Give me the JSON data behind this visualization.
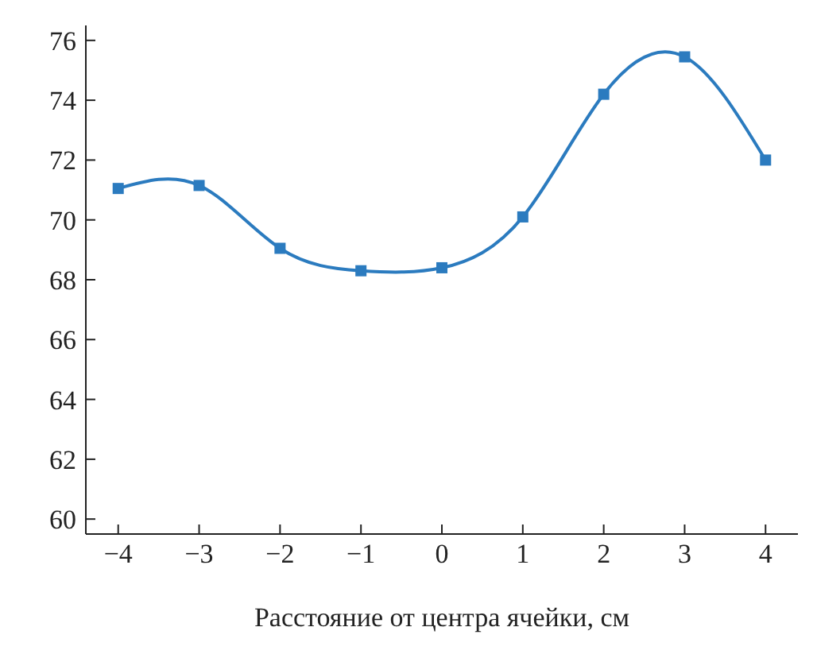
{
  "chart_data": {
    "type": "line",
    "xlabel": "Расстояние от центра ячейки, см",
    "x": [
      -4,
      -3,
      -2,
      -1,
      0,
      1,
      2,
      3,
      4
    ],
    "series": [
      {
        "color": "#2b7bbf",
        "values": [
          71.05,
          71.15,
          69.05,
          68.3,
          68.4,
          70.1,
          74.2,
          75.45,
          72.0
        ]
      }
    ],
    "xlim": [
      -4.4,
      4.4
    ],
    "xticks": [
      -4,
      -3,
      -2,
      -1,
      0,
      1,
      2,
      3,
      4
    ],
    "ylim": [
      59.5,
      76.5
    ],
    "yticks": [
      60,
      62,
      64,
      66,
      68,
      70,
      72,
      74,
      76
    ],
    "grid": false,
    "legend": false,
    "marker": "square",
    "line_style": "solid"
  }
}
